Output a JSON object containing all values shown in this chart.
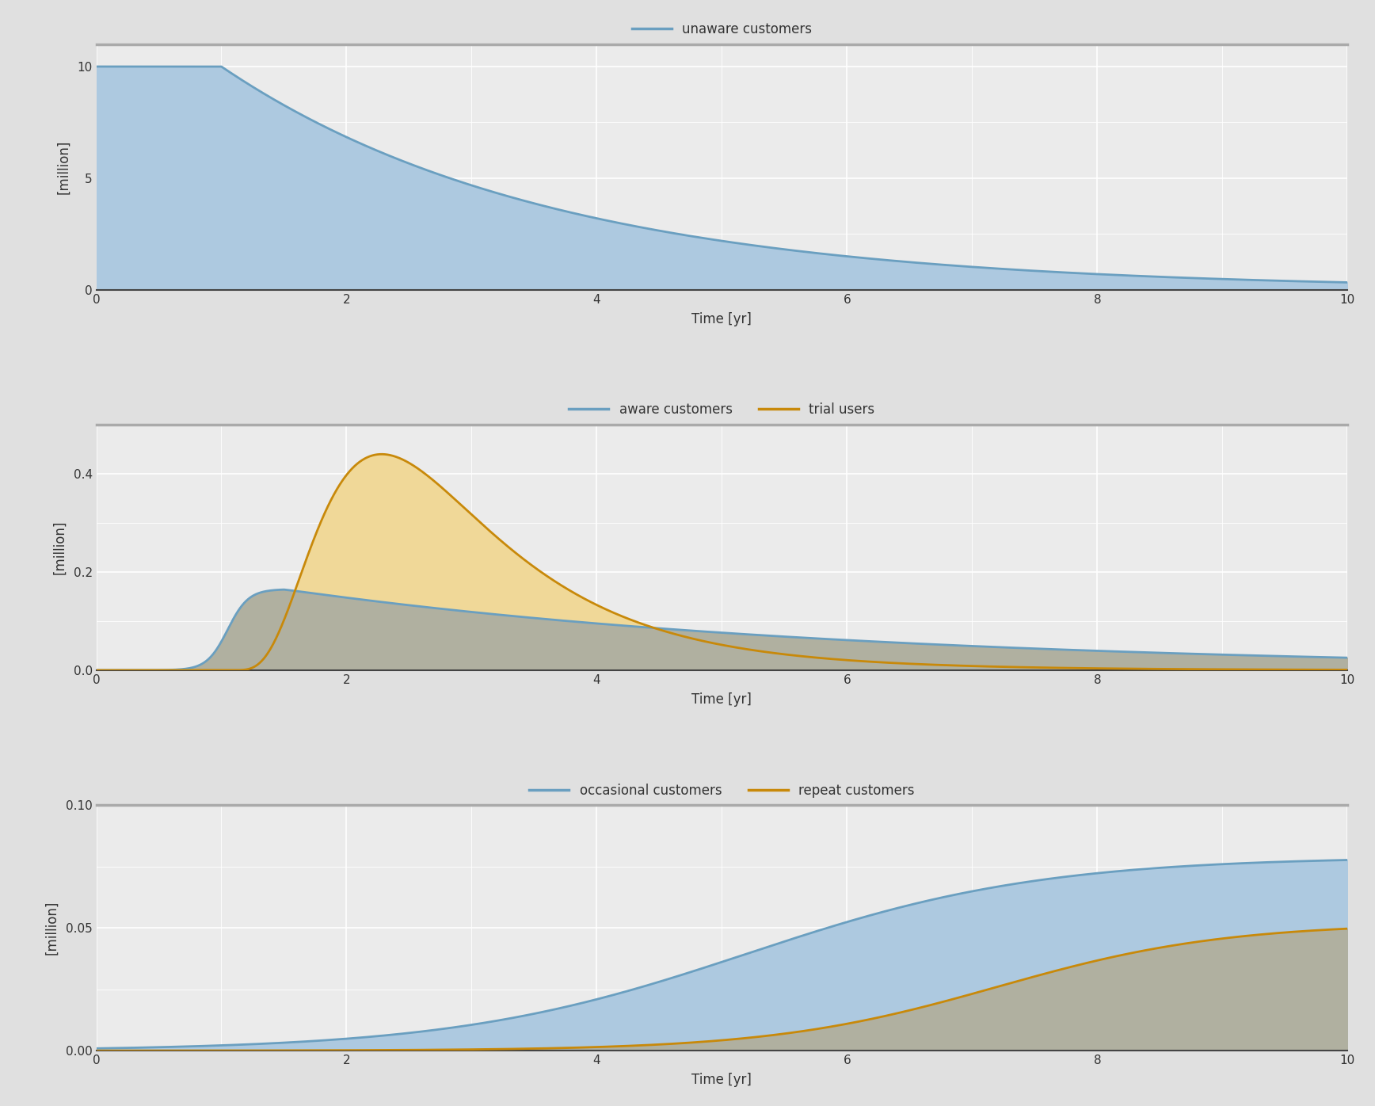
{
  "fig_bg_color": "#e0e0e0",
  "plot_bg_color": "#ebebeb",
  "grid_color": "#ffffff",
  "blue_line_color": "#6a9fc0",
  "blue_fill_color": "#adc9e0",
  "orange_line_color": "#c8890a",
  "orange_fill_color": "#f0d898",
  "overlap_fill_color": "#b0b0a0",
  "top_spine_color": "#aaaaaa",
  "bottom_spine_color": "#444444",
  "tick_label_color": "#333333",
  "axis_label_color": "#333333",
  "legend_text_color": "#333333",
  "plot1": {
    "legend": "unaware customers",
    "ylabel": "[million]",
    "xlabel": "Time [yr]",
    "ylim": [
      0,
      11
    ],
    "yticks": [
      0,
      5,
      10
    ],
    "xlim": [
      0,
      10
    ],
    "xticks": [
      0,
      2,
      4,
      6,
      8,
      10
    ]
  },
  "plot2": {
    "legend1": "aware customers",
    "legend2": "trial users",
    "ylabel": "[million]",
    "xlabel": "Time [yr]",
    "ylim": [
      0,
      0.5
    ],
    "yticks": [
      0.0,
      0.2,
      0.4
    ],
    "ytick_labels": [
      "0.0",
      "0.2",
      "0.4"
    ],
    "xlim": [
      0,
      10
    ],
    "xticks": [
      0,
      2,
      4,
      6,
      8,
      10
    ]
  },
  "plot3": {
    "legend1": "occasional customers",
    "legend2": "repeat customers",
    "ylabel": "[million]",
    "xlabel": "Time [yr]",
    "ylim": [
      0,
      0.1
    ],
    "yticks": [
      0.0,
      0.05,
      0.1
    ],
    "ytick_labels": [
      "0.00",
      "0.05",
      "0.10"
    ],
    "xlim": [
      0,
      10
    ],
    "xticks": [
      0,
      2,
      4,
      6,
      8,
      10
    ]
  }
}
